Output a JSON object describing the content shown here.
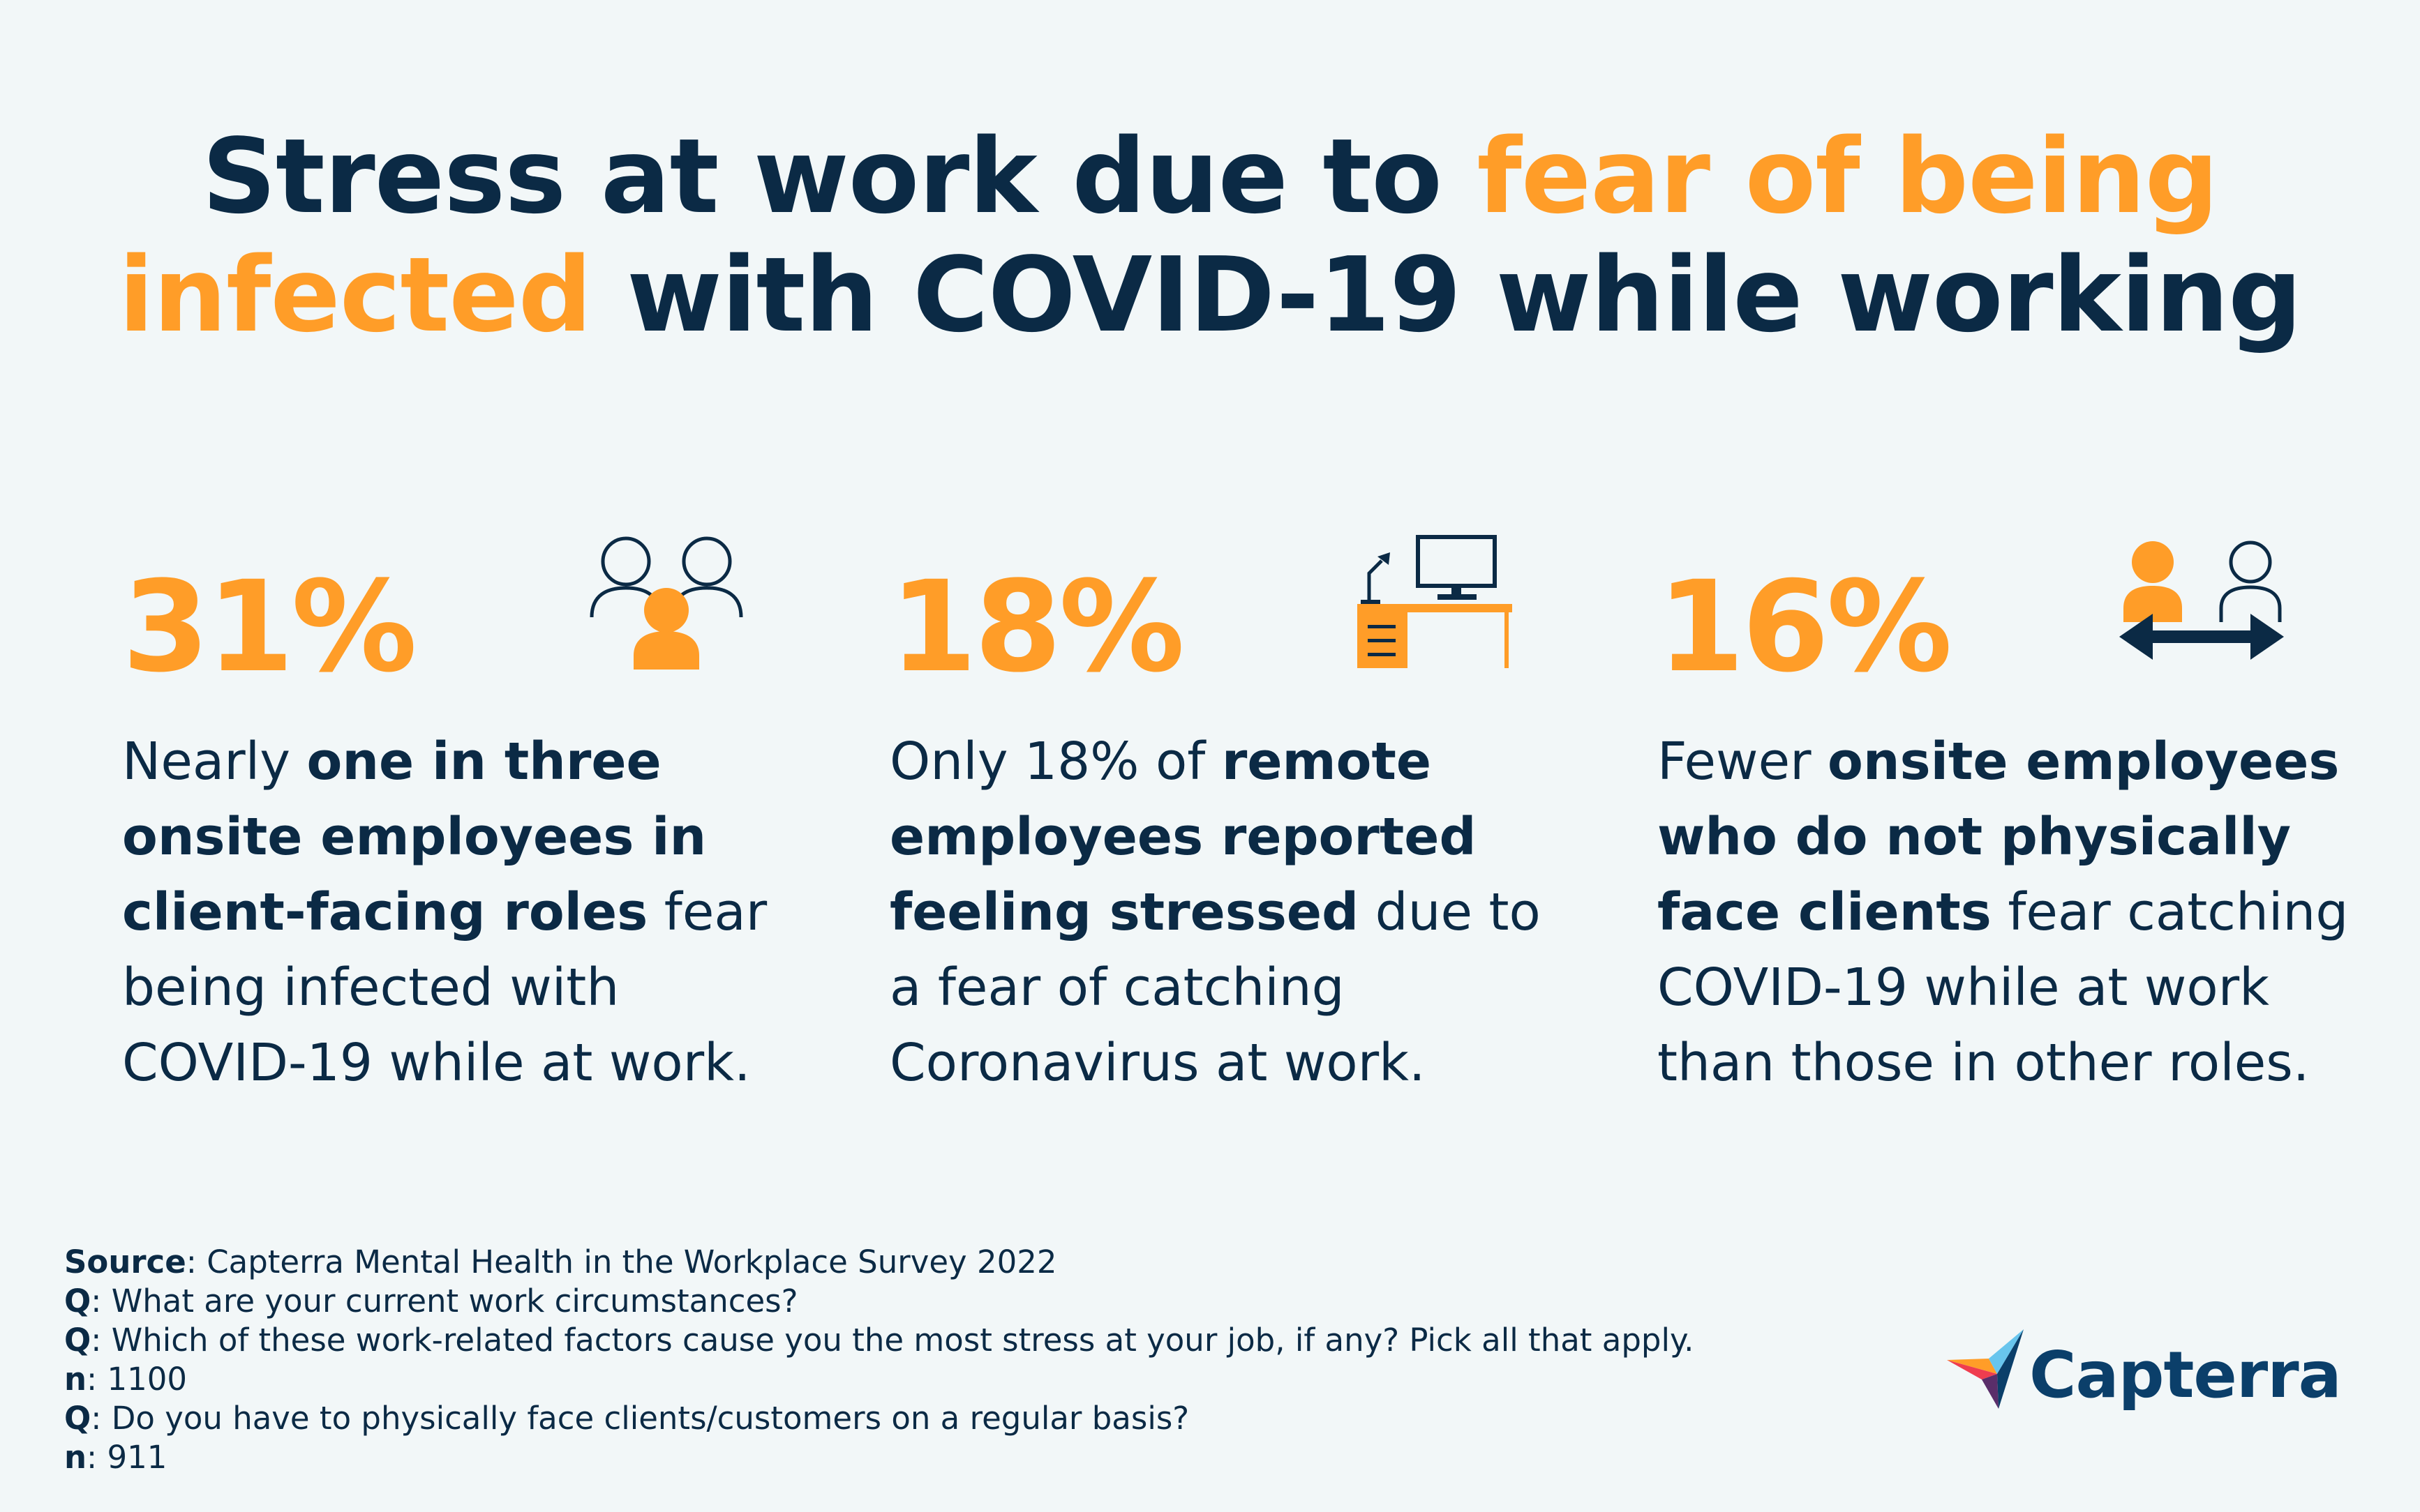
{
  "title": {
    "part1": "Stress at work due to ",
    "highlight1": "fear of being",
    "highlight2": "infected",
    "part2": " with COVID-19 while working"
  },
  "stats": [
    {
      "percent": "31%",
      "icon": "people-group-icon",
      "text_a": "Nearly ",
      "bold_a": "one in three onsite employees in client-facing roles",
      "text_b": " fear being infected with COVID-19 while at work."
    },
    {
      "percent": "18%",
      "icon": "home-office-desk-icon",
      "text_a": "Only 18% of ",
      "bold_a": "remote employees reported feeling stressed",
      "text_b": " due to a fear of catching Coronavirus at work."
    },
    {
      "percent": "16%",
      "icon": "people-exchange-icon",
      "text_a": "Fewer ",
      "bold_a": "onsite employees who do not physically face clients",
      "text_b": " fear catching COVID-19 while at work than those in other roles."
    }
  ],
  "footer": {
    "lines": [
      {
        "label": "Source",
        "text": ": Capterra Mental Health in the Workplace Survey 2022"
      },
      {
        "label": "Q",
        "text": ": What are your current work circumstances?"
      },
      {
        "label": "Q",
        "text": ": Which of these work-related factors cause you the most stress at your job, if any? Pick all that apply."
      },
      {
        "label": "n",
        "text": ": 1100"
      },
      {
        "label": "Q",
        "text": ": Do you have to physically face clients/customers on a regular basis?"
      },
      {
        "label": "n",
        "text": ": 911"
      }
    ]
  },
  "logo": {
    "text": "Capterra",
    "icon": "capterra-logo-icon"
  },
  "colors": {
    "accent": "#ff9d28",
    "navy": "#0b2a45",
    "background": "#f2f7f8"
  }
}
